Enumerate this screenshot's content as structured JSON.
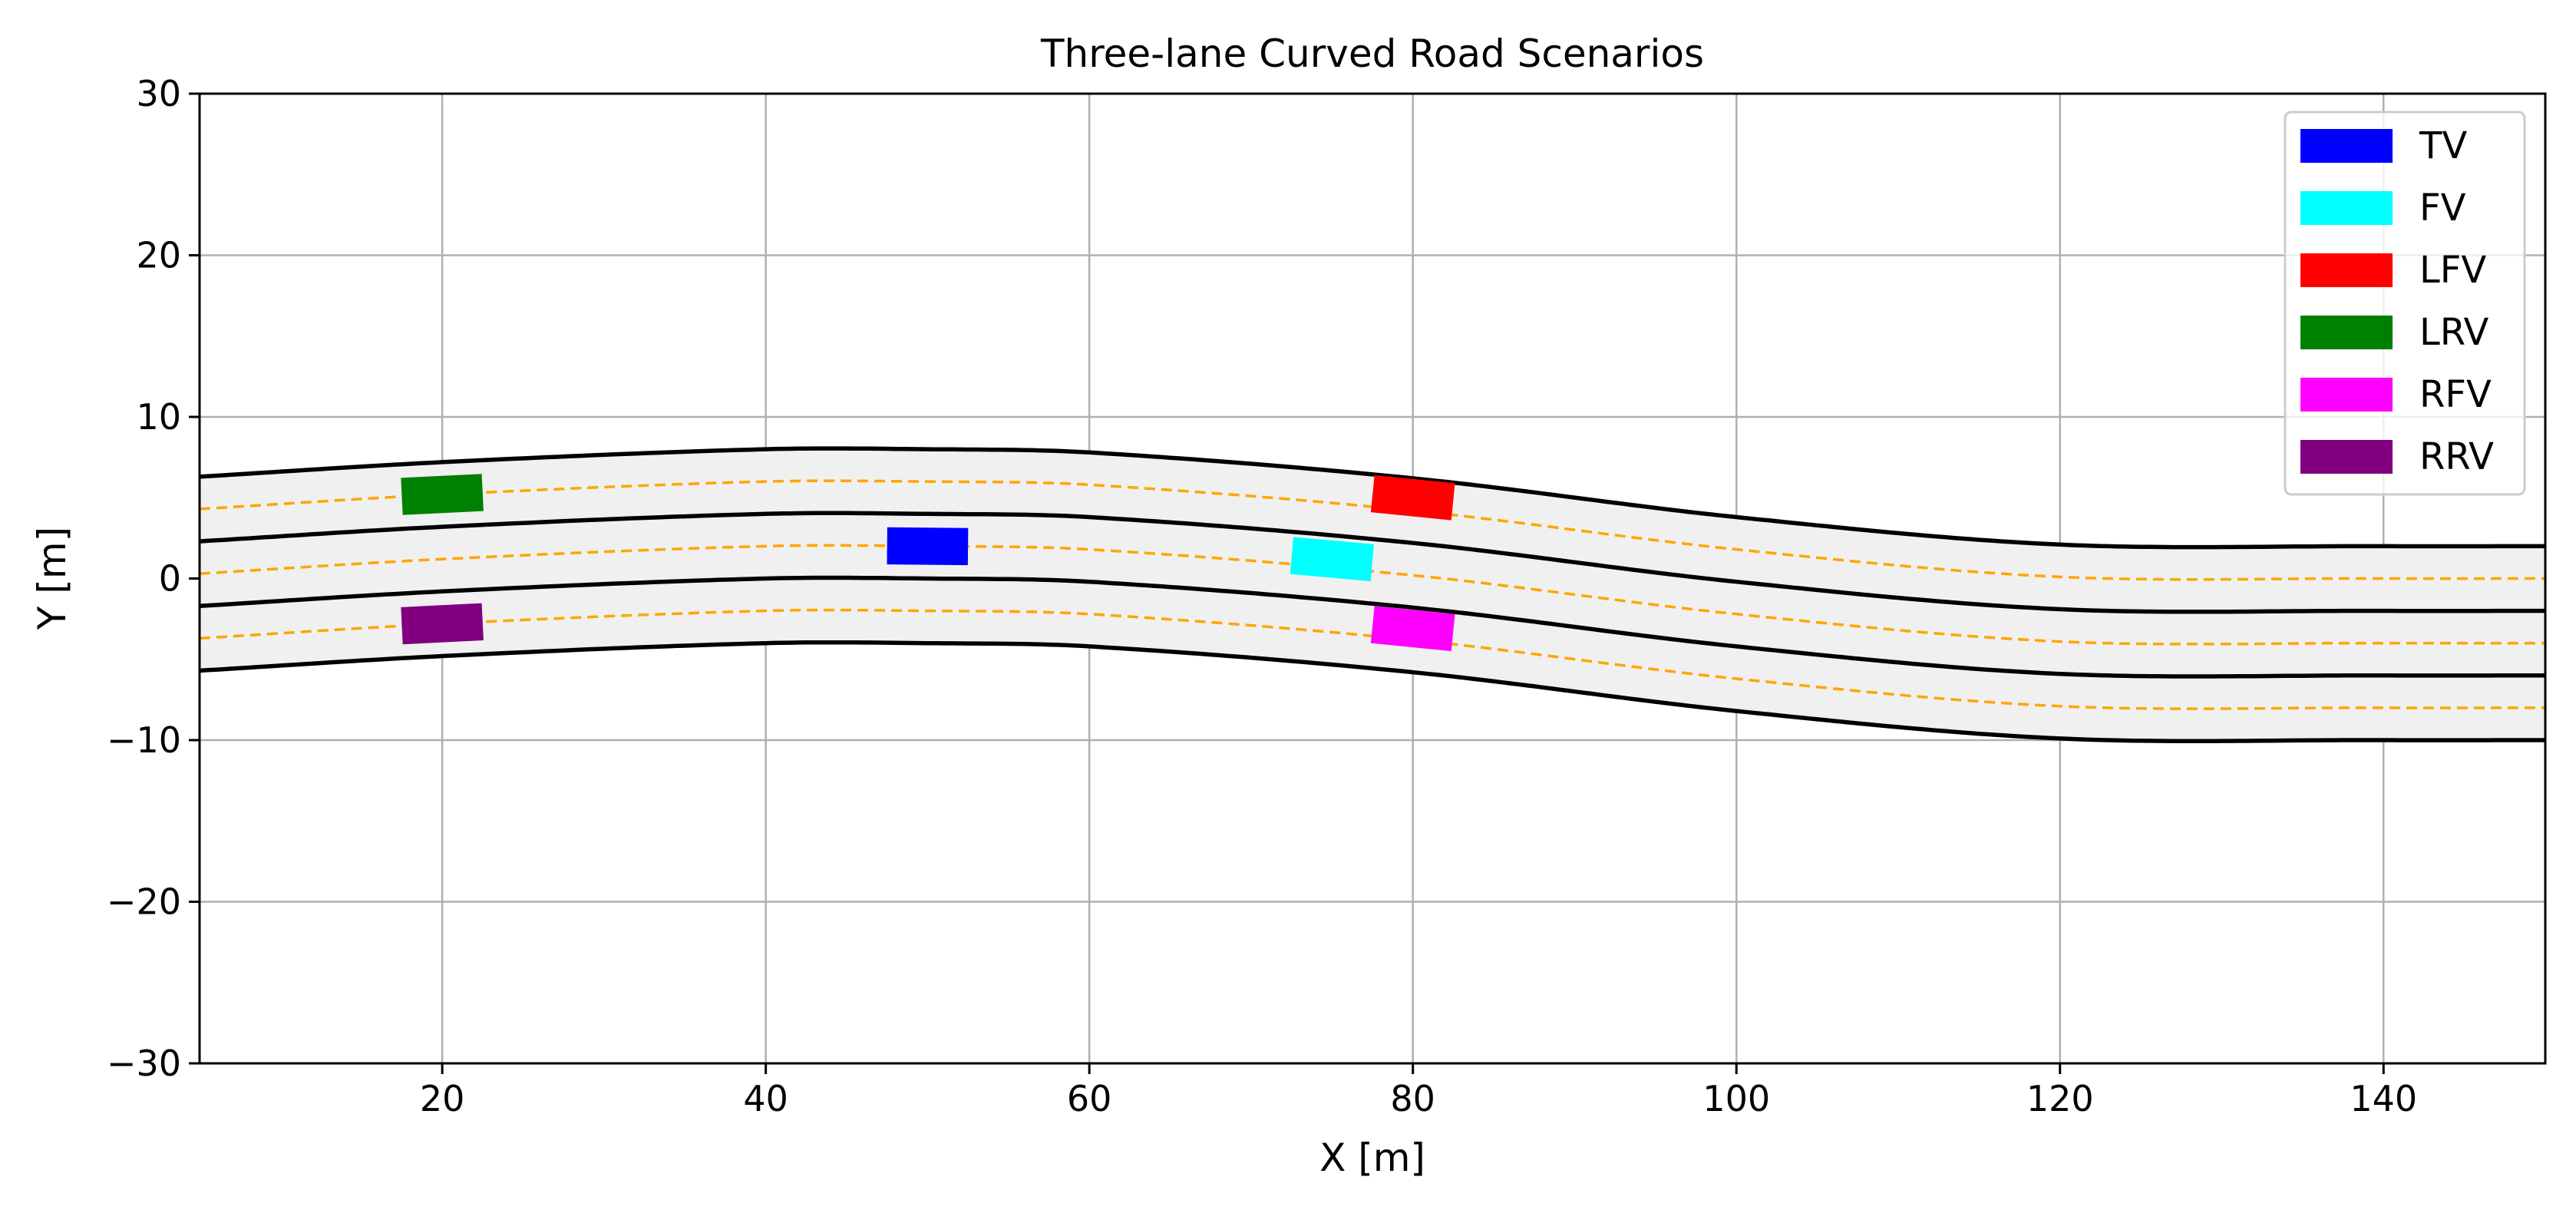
{
  "chart_data": {
    "type": "line",
    "title": "Three-lane Curved Road Scenarios",
    "xlabel": "X [m]",
    "ylabel": "Y [m]",
    "xlim": [
      5,
      150
    ],
    "ylim": [
      -30,
      30
    ],
    "x_ticks": [
      20,
      40,
      60,
      80,
      100,
      120,
      140
    ],
    "y_ticks": [
      30,
      20,
      10,
      0,
      -10,
      -20,
      -30
    ],
    "x_tick_labels": [
      "20",
      "40",
      "60",
      "80",
      "100",
      "120",
      "140"
    ],
    "y_tick_labels": [
      "30",
      "20",
      "10",
      "0",
      "−10",
      "−20",
      "−30"
    ],
    "grid": true,
    "legend_position": "top-right",
    "road": {
      "fill_color": "#f0f0f0",
      "boundary_color": "#000000",
      "centerline_color": "#ffa500",
      "lane_width": 4,
      "reference_centerline": {
        "x": [
          5,
          20,
          40,
          50,
          60,
          80,
          100,
          120,
          140,
          150
        ],
        "y": [
          0.3,
          1.2,
          2.0,
          2.0,
          1.8,
          0.2,
          -2.2,
          -3.9,
          -4.0,
          -4.0
        ]
      },
      "boundary_offsets": [
        6,
        2,
        -2,
        -6
      ],
      "centerline_offsets": [
        4,
        0,
        -4
      ]
    },
    "vehicles": [
      {
        "name": "TV",
        "color": "#0000ff",
        "x": 50,
        "y": 2.0,
        "length": 5,
        "width": 2.3
      },
      {
        "name": "FV",
        "color": "#00ffff",
        "x": 75,
        "y": 1.2,
        "length": 5,
        "width": 2.3
      },
      {
        "name": "LFV",
        "color": "#ff0000",
        "x": 80,
        "y": 5.0,
        "length": 5,
        "width": 2.3
      },
      {
        "name": "LRV",
        "color": "#008000",
        "x": 20,
        "y": 5.2,
        "length": 5,
        "width": 2.3
      },
      {
        "name": "RFV",
        "color": "#ff00ff",
        "x": 80,
        "y": -3.1,
        "length": 5,
        "width": 2.3
      },
      {
        "name": "RRV",
        "color": "#800080",
        "x": 20,
        "y": -2.8,
        "length": 5,
        "width": 2.3
      }
    ]
  }
}
